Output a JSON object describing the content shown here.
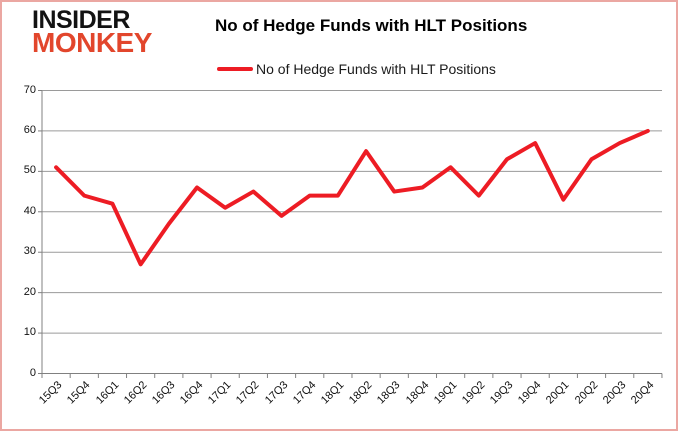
{
  "window": {
    "background_color": "#ffffff",
    "border_color": "#eba7a2"
  },
  "logo": {
    "line1": "INSIDER",
    "line2": "MONKEY",
    "line1_color": "#121212",
    "line2_color": "#e2462c"
  },
  "header": {
    "title": "No of Hedge Funds with HLT Positions"
  },
  "legend": {
    "label": "No of Hedge Funds with HLT Positions",
    "swatch_color": "#ed1c24",
    "position": "top"
  },
  "chart_data": {
    "type": "line",
    "title": "No of Hedge Funds with HLT Positions",
    "categories": [
      "15Q3",
      "15Q4",
      "16Q1",
      "16Q2",
      "16Q3",
      "16Q4",
      "17Q1",
      "17Q2",
      "17Q3",
      "17Q4",
      "18Q1",
      "18Q2",
      "18Q3",
      "18Q4",
      "19Q1",
      "19Q2",
      "19Q3",
      "19Q4",
      "20Q1",
      "20Q2",
      "20Q3",
      "20Q4"
    ],
    "series": [
      {
        "name": "No of Hedge Funds with HLT Positions",
        "color": "#ed1c24",
        "line_width": 4,
        "values": [
          51,
          44,
          42,
          27,
          37,
          46,
          41,
          45,
          39,
          44,
          44,
          55,
          45,
          46,
          51,
          44,
          53,
          57,
          43,
          53,
          57,
          60
        ]
      }
    ],
    "xlabel": "",
    "ylabel": "",
    "ylim": [
      0,
      70
    ],
    "yticks": [
      0,
      10,
      20,
      30,
      40,
      50,
      60,
      70
    ],
    "grid": "horizontal",
    "gridline_color": "#9a9a9a",
    "axis_color": "#808080",
    "tick_label_color": "#111111",
    "legend_position": "top"
  }
}
